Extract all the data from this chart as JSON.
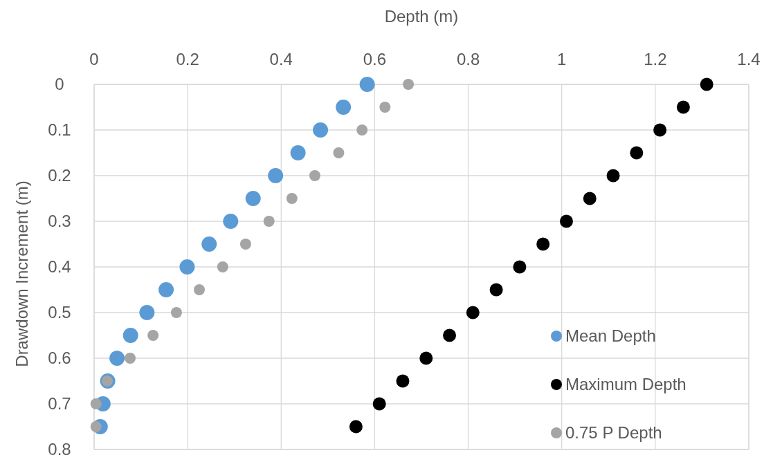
{
  "chart_data": {
    "type": "scatter",
    "xlabel": "Depth (m)",
    "ylabel": "Drawdown Increment (m)",
    "xlim": [
      0,
      1.4
    ],
    "xticks": [
      0,
      0.2,
      0.4,
      0.6,
      0.8,
      1,
      1.2,
      1.4
    ],
    "ylim": [
      0.8,
      0
    ],
    "yticks": [
      0,
      0.1,
      0.2,
      0.3,
      0.4,
      0.5,
      0.6,
      0.7,
      0.8
    ],
    "grid": true,
    "legend": "bottom right",
    "marker": "circle",
    "series": [
      {
        "name": "Mean Depth",
        "color": "#5b9bd5",
        "x": [
          0.584,
          0.533,
          0.484,
          0.436,
          0.388,
          0.34,
          0.292,
          0.246,
          0.199,
          0.154,
          0.113,
          0.078,
          0.049,
          0.029,
          0.019,
          0.013
        ],
        "values": [
          0,
          0.05,
          0.1,
          0.15,
          0.2,
          0.25,
          0.3,
          0.35,
          0.4,
          0.45,
          0.5,
          0.55,
          0.6,
          0.65,
          0.7,
          0.75
        ]
      },
      {
        "name": "Maximum Depth",
        "color": "#000000",
        "x": [
          1.31,
          1.26,
          1.21,
          1.16,
          1.11,
          1.06,
          1.01,
          0.96,
          0.91,
          0.86,
          0.81,
          0.76,
          0.71,
          0.66,
          0.61,
          0.56
        ],
        "values": [
          0,
          0.05,
          0.1,
          0.15,
          0.2,
          0.25,
          0.3,
          0.35,
          0.4,
          0.45,
          0.5,
          0.55,
          0.6,
          0.65,
          0.7,
          0.75
        ]
      },
      {
        "name": "0.75 P Depth",
        "color": "#a5a5a5",
        "x": [
          0.672,
          0.622,
          0.573,
          0.523,
          0.472,
          0.423,
          0.374,
          0.324,
          0.275,
          0.225,
          0.176,
          0.126,
          0.077,
          0.028,
          0.004,
          0.004
        ],
        "values": [
          0,
          0.05,
          0.1,
          0.15,
          0.2,
          0.25,
          0.3,
          0.35,
          0.4,
          0.45,
          0.5,
          0.55,
          0.6,
          0.65,
          0.7,
          0.75
        ]
      }
    ]
  }
}
